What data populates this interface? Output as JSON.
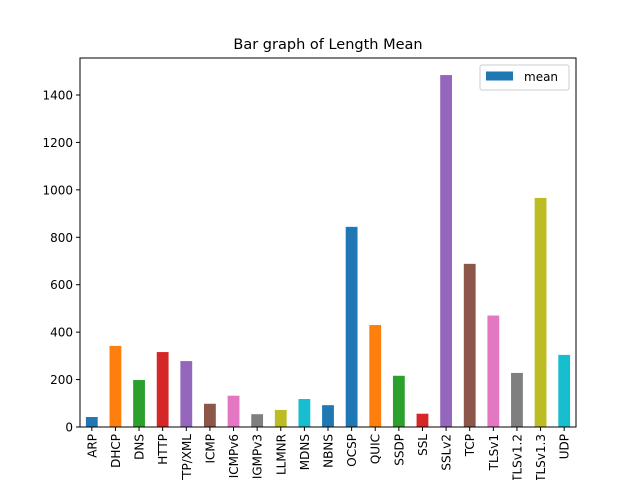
{
  "chart_data": {
    "type": "bar",
    "title": "Bar graph of Length Mean",
    "xlabel": "",
    "ylabel": "",
    "categories": [
      "ARP",
      "DHCP",
      "DNS",
      "HTTP",
      "HTTP/XML",
      "ICMP",
      "ICMPv6",
      "IGMPv3",
      "LLMNR",
      "MDNS",
      "NBNS",
      "OCSP",
      "QUIC",
      "SSDP",
      "SSL",
      "SSLv2",
      "TCP",
      "TLSv1",
      "TLSv1.2",
      "TLSv1.3",
      "UDP"
    ],
    "series": [
      {
        "name": "mean",
        "values": [
          42,
          342,
          198,
          316,
          278,
          98,
          132,
          54,
          72,
          118,
          92,
          844,
          430,
          216,
          56,
          1484,
          688,
          470,
          228,
          966,
          304
        ]
      }
    ],
    "bar_colors": [
      "#1f77b4",
      "#ff7f0e",
      "#2ca02c",
      "#d62728",
      "#9467bd",
      "#8c564b",
      "#e377c2",
      "#7f7f7f",
      "#bcbd22",
      "#17becf",
      "#1f77b4",
      "#1f77b4",
      "#ff7f0e",
      "#2ca02c",
      "#d62728",
      "#9467bd",
      "#8c564b",
      "#e377c2",
      "#7f7f7f",
      "#bcbd22",
      "#17becf"
    ],
    "legend_color": "#1f77b4",
    "ylim": [
      0,
      1556
    ],
    "yticks": [
      0,
      200,
      400,
      600,
      800,
      1000,
      1200,
      1400
    ],
    "grid": false,
    "legend_position": "top-right"
  }
}
